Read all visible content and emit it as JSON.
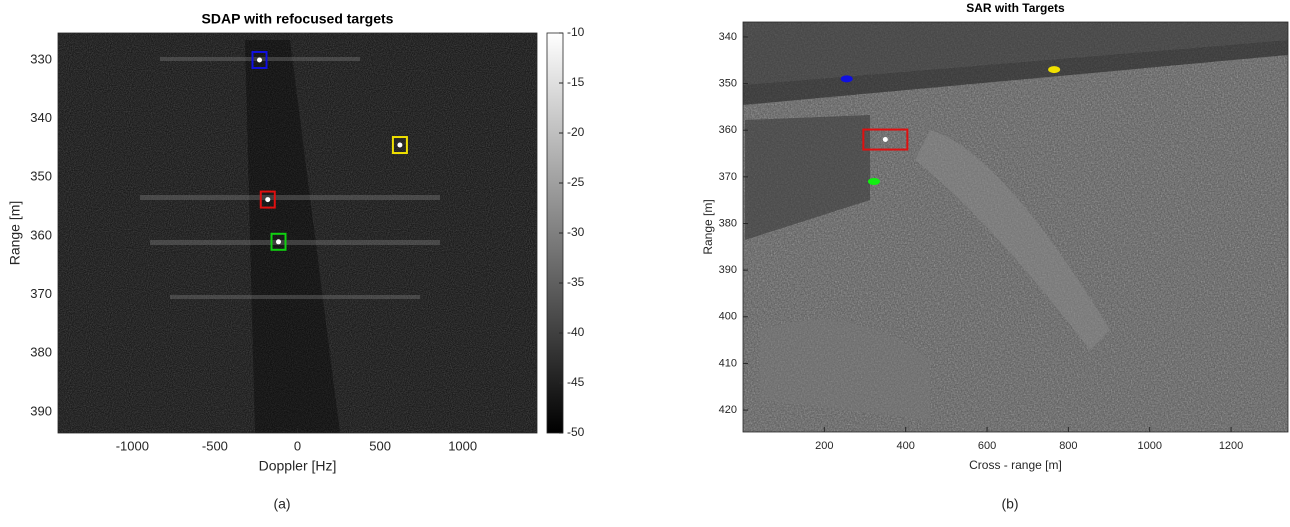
{
  "chart_data": [
    {
      "type": "image",
      "title": "SDAP with refocused targets",
      "x_label": "Doppler [Hz]",
      "y_label": "Range [m]",
      "xlim": [
        -1450,
        1450
      ],
      "xticks": [
        -1000,
        -500,
        0,
        500,
        1000
      ],
      "ylim": [
        325.4,
        393.6
      ],
      "yticks": [
        330,
        340,
        350,
        360,
        370,
        380,
        390
      ],
      "clim": [
        -50,
        -10
      ],
      "cticks": [
        -10,
        -15,
        -20,
        -25,
        -30,
        -35,
        -40,
        -45,
        -50
      ],
      "colormap": "gray",
      "caption": "(a)",
      "targets": [
        {
          "color": "#1010e0",
          "marker": "box",
          "x": -230,
          "y": 330
        },
        {
          "color": "#f0e000",
          "marker": "box",
          "x": 620,
          "y": 344.5
        },
        {
          "color": "#e01010",
          "marker": "box",
          "x": -180,
          "y": 353.8
        },
        {
          "color": "#10d010",
          "marker": "box",
          "x": -115,
          "y": 361
        }
      ]
    },
    {
      "type": "image",
      "title": "SAR with Targets",
      "x_label": "Cross - range [m]",
      "y_label": "Range [m]",
      "xlim": [
        0,
        1340
      ],
      "xticks": [
        200,
        400,
        600,
        800,
        1000,
        1200
      ],
      "ylim": [
        336.8,
        424.7
      ],
      "yticks": [
        340,
        350,
        360,
        370,
        380,
        390,
        400,
        410,
        420
      ],
      "colormap": "gray",
      "caption": "(b)",
      "targets": [
        {
          "color": "#1010e0",
          "marker": "dot",
          "x": 255,
          "y": 349
        },
        {
          "color": "#f0e000",
          "marker": "dot",
          "x": 765,
          "y": 347
        },
        {
          "color": "#e01010",
          "marker": "box",
          "x": 350,
          "y": 362
        },
        {
          "color": "#10f010",
          "marker": "dot",
          "x": 322,
          "y": 371
        }
      ]
    }
  ]
}
